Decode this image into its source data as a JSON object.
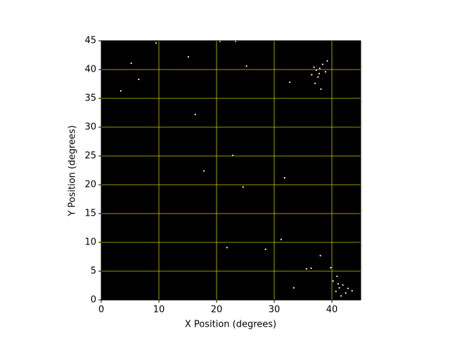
{
  "chart_data": {
    "type": "scatter",
    "x_label": "X Position (degrees)",
    "y_label": "Y Position (degrees)",
    "xlim": [
      0,
      45
    ],
    "ylim": [
      0,
      45
    ],
    "xticks": [
      0,
      10,
      20,
      30,
      40
    ],
    "yticks": [
      0,
      5,
      10,
      15,
      20,
      25,
      30,
      35,
      40,
      45
    ],
    "grid": true,
    "grid_color": "#c8c800",
    "background": "#000000",
    "series": [
      {
        "color": "#fff8e0",
        "x": [
          9.5,
          20.6,
          23.3,
          15.1,
          5.2,
          25.2,
          6.5,
          3.4,
          16.3,
          22.8,
          17.8,
          24.6,
          31.8,
          21.8,
          28.5,
          31.2,
          32.7,
          37.3,
          37.8,
          36.9,
          38.4,
          37.6,
          38.9,
          36.5,
          37.1,
          39.2,
          38.1,
          37.9,
          41.3,
          40.7,
          41.9,
          42.4,
          40.2,
          41.6,
          42.8,
          40.9,
          43.5,
          41.1,
          35.6,
          36.4,
          38.0,
          33.4,
          39.8
        ],
        "y": [
          44.6,
          44.9,
          44.9,
          42.2,
          41.1,
          40.6,
          38.3,
          36.3,
          32.2,
          25.1,
          22.4,
          19.6,
          21.2,
          9.1,
          8.8,
          10.5,
          37.8,
          39.9,
          39.3,
          40.4,
          40.9,
          38.7,
          39.6,
          39.1,
          37.6,
          41.5,
          36.6,
          40.2,
          2.1,
          1.5,
          2.6,
          1.2,
          3.3,
          0.7,
          2.0,
          4.1,
          1.6,
          2.8,
          5.4,
          5.5,
          7.7,
          2.1,
          5.6
        ]
      }
    ]
  }
}
